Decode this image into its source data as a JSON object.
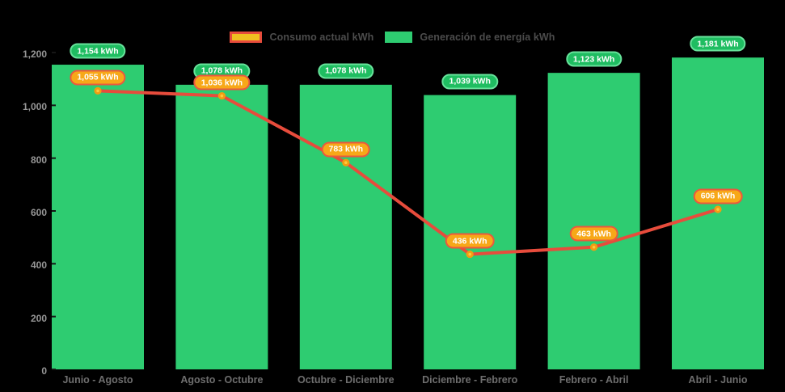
{
  "legend": {
    "items": [
      {
        "label": "Consumo actual kWh"
      },
      {
        "label": "Generación de energía kWh"
      }
    ]
  },
  "colors": {
    "background": "#000000",
    "bar": "#2ecc71",
    "line": "#e74c3c",
    "marker_fill": "#ffc93c",
    "marker_stroke": "#f39c12",
    "generation_badge_fill": "#1fbd61",
    "generation_badge_border": "#67e39b",
    "consumption_badge_fill": "#f7a818",
    "consumption_badge_border": "#ea593e",
    "legend_consumption_swatch_fill": "#f0c020",
    "legend_consumption_swatch_border": "#e74c3c",
    "axis_tick_text": "#979797",
    "category_text": "#6e6e6e",
    "legend_text": "#4c4c4c",
    "tick_mark": "#161616"
  },
  "chart_data": {
    "type": "bar+line",
    "title": "",
    "categories": [
      "Junio - Agosto",
      "Agosto - Octubre",
      "Octubre - Diciembre",
      "Diciembre - Febrero",
      "Febrero - Abril",
      "Abril - Junio"
    ],
    "series": [
      {
        "name": "Generación de energía kWh",
        "type": "bar",
        "color": "#2ecc71",
        "values": [
          1154,
          1078,
          1078,
          1039,
          1123,
          1181
        ],
        "labels": [
          "1,154 kWh",
          "1,078 kWh",
          "1,078 kWh",
          "1,039 kWh",
          "1,123 kWh",
          "1,181 kWh"
        ]
      },
      {
        "name": "Consumo actual kWh",
        "type": "line",
        "color": "#e74c3c",
        "values": [
          1055,
          1036,
          783,
          436,
          463,
          606
        ],
        "labels": [
          "1,055 kWh",
          "1,036 kWh",
          "783 kWh",
          "436 kWh",
          "463 kWh",
          "606 kWh"
        ]
      }
    ],
    "ylim": [
      0,
      1200
    ],
    "yticks": [
      0,
      200,
      400,
      600,
      800,
      1000,
      1200
    ],
    "ytick_labels": [
      "0",
      "200",
      "400",
      "600",
      "800",
      "1,000",
      "1,200"
    ],
    "xlabel": "",
    "ylabel": "",
    "grid": false,
    "legend_position": "top"
  }
}
